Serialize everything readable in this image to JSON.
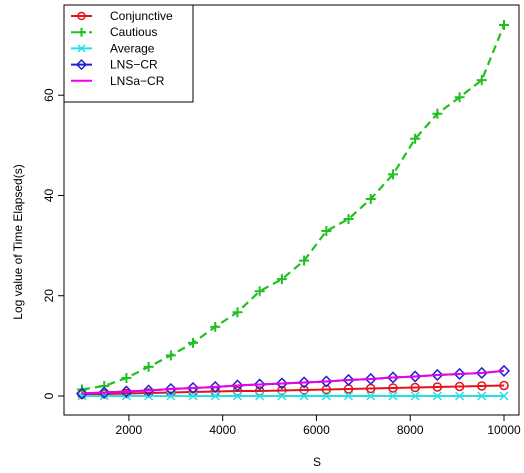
{
  "chart_data": {
    "type": "line",
    "title": "",
    "xlabel": "S",
    "ylabel": "Log value of Time Elapsed(s)",
    "xlim": [
      1000,
      10000
    ],
    "ylim": [
      0,
      74
    ],
    "x_ticks": [
      2000,
      4000,
      6000,
      8000,
      10000
    ],
    "x_tick_labels": [
      "2000",
      "4000",
      "6000",
      "8000",
      "10000"
    ],
    "y_ticks": [
      0,
      20,
      40,
      60
    ],
    "y_tick_labels": [
      "0",
      "20",
      "40",
      "60"
    ],
    "grid": false,
    "legend_position": "top-left",
    "x": [
      1000,
      1474,
      1947,
      2421,
      2895,
      3368,
      3842,
      4316,
      4789,
      5263,
      5737,
      6211,
      6684,
      7158,
      7632,
      8105,
      8579,
      9053,
      9526,
      10000
    ],
    "series": [
      {
        "name": "Conjunctive",
        "color": "#e8101a",
        "marker": "circle",
        "dash": "solid",
        "values": [
          0.3,
          0.4,
          0.5,
          0.6,
          0.7,
          0.8,
          0.9,
          1.0,
          1.0,
          1.1,
          1.2,
          1.3,
          1.4,
          1.5,
          1.6,
          1.7,
          1.8,
          1.9,
          2.0,
          2.1
        ]
      },
      {
        "name": "Cautious",
        "color": "#20c020",
        "marker": "plus",
        "dash": "dashed",
        "values": [
          1.3,
          2.0,
          3.6,
          5.8,
          8.1,
          10.6,
          13.8,
          16.7,
          20.9,
          23.3,
          27.0,
          32.9,
          35.3,
          39.3,
          44.2,
          51.3,
          56.3,
          59.6,
          63.0,
          74.0
        ]
      },
      {
        "name": "Average",
        "color": "#22e0e6",
        "marker": "x",
        "dash": "solid",
        "values": [
          0.0,
          0.0,
          0.0,
          0.0,
          0.0,
          0.0,
          0.0,
          0.0,
          0.0,
          0.0,
          0.0,
          0.0,
          0.0,
          0.0,
          0.0,
          0.0,
          0.0,
          0.0,
          0.0,
          0.0
        ]
      },
      {
        "name": "LNS−CR",
        "color": "#1f22d6",
        "marker": "diamond",
        "dash": "solid",
        "values": [
          0.5,
          0.7,
          0.9,
          1.1,
          1.4,
          1.6,
          1.8,
          2.1,
          2.3,
          2.5,
          2.7,
          2.9,
          3.2,
          3.4,
          3.7,
          3.9,
          4.2,
          4.4,
          4.6,
          5.0
        ]
      },
      {
        "name": "LNSa−CR",
        "color": "#ee00ee",
        "marker": "none",
        "dash": "solid",
        "values": [
          0.5,
          0.7,
          0.9,
          1.1,
          1.4,
          1.6,
          1.8,
          2.1,
          2.3,
          2.5,
          2.7,
          2.9,
          3.2,
          3.4,
          3.7,
          3.9,
          4.2,
          4.4,
          4.6,
          5.0
        ]
      }
    ]
  }
}
